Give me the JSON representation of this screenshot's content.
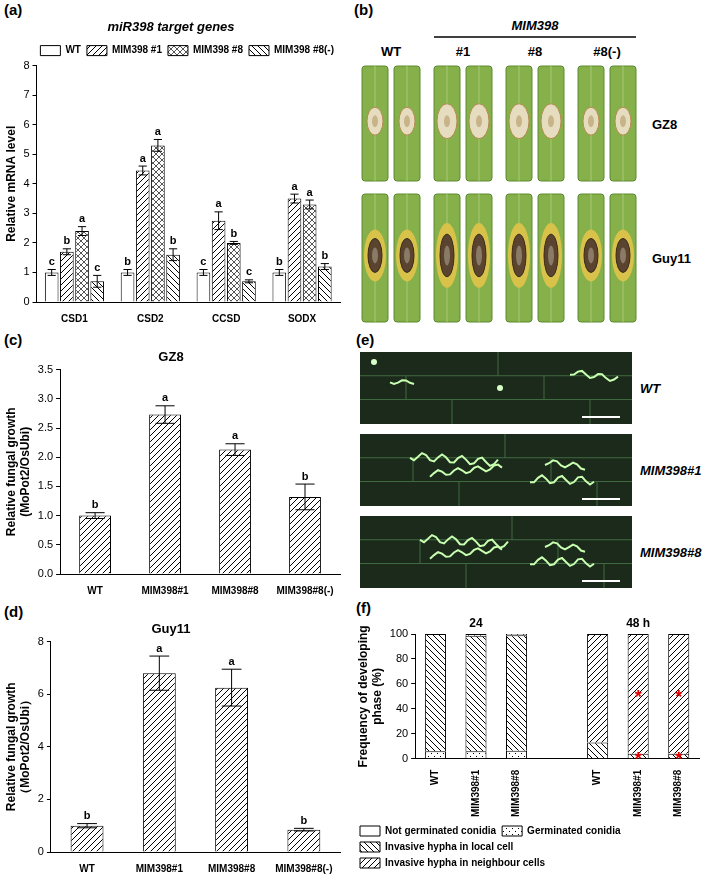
{
  "chart_data": [
    {
      "panel": "(a)",
      "type": "bar",
      "title": "miR398 target genes",
      "ylabel": "Relative mRNA level",
      "categories": [
        "CSD1",
        "CSD2",
        "CCSD",
        "SODX"
      ],
      "series": [
        {
          "name": "WT",
          "color": "#000000",
          "values": [
            1.0,
            1.0,
            1.0,
            1.0
          ],
          "errors": [
            0.1,
            0.1,
            0.1,
            0.1
          ],
          "letters": [
            "c",
            "b",
            "c",
            "b"
          ]
        },
        {
          "name": "MIM398 #1",
          "color": "#000000",
          "values": [
            1.7,
            4.45,
            2.75,
            3.5
          ],
          "errors": [
            0.1,
            0.15,
            0.3,
            0.15
          ],
          "letters": [
            "b",
            "a",
            "a",
            "a"
          ]
        },
        {
          "name": "MIM398 #8",
          "color": "#555555",
          "values": [
            2.4,
            5.3,
            2.0,
            3.3
          ],
          "errors": [
            0.15,
            0.2,
            0.05,
            0.15
          ],
          "letters": [
            "a",
            "a",
            "b",
            "a"
          ]
        },
        {
          "name": "MIM398 #8(-)",
          "color": "#000000",
          "values": [
            0.7,
            1.6,
            0.7,
            1.2
          ],
          "errors": [
            0.2,
            0.2,
            0.05,
            0.1
          ],
          "letters": [
            "c",
            "b",
            "c",
            "b"
          ]
        }
      ],
      "ylim": [
        0,
        8
      ],
      "yticks": [
        0,
        1,
        2,
        3,
        4,
        5,
        6,
        7,
        8
      ],
      "grid": false,
      "legend": "top"
    },
    {
      "panel": "(b)",
      "type": "image",
      "header": "MIM398",
      "columns": [
        "WT",
        "#1",
        "#8",
        "#8(-)"
      ],
      "rows": [
        "GZ8",
        "Guy11"
      ]
    },
    {
      "panel": "(c)",
      "type": "bar",
      "title": "GZ8",
      "ylabel": [
        "Relative fungal growth",
        "(MoPot2/OsUbi)"
      ],
      "categories": [
        "WT",
        "MIM398#1",
        "MIM398#8",
        "MIM398#8(-)"
      ],
      "values": [
        1.0,
        2.73,
        2.13,
        1.32
      ],
      "errors": [
        0.05,
        0.15,
        0.1,
        0.22
      ],
      "letters": [
        "b",
        "a",
        "a",
        "b"
      ],
      "color": "#000000",
      "ylim": [
        0,
        3.5
      ],
      "yticks": [
        {
          "value": 0,
          "label": "0.0"
        },
        0.5,
        {
          "value": 1,
          "label": "1.0"
        },
        1.5,
        {
          "value": 2,
          "label": "2.0"
        },
        2.5,
        {
          "value": 3,
          "label": "3.0"
        },
        3.5
      ],
      "grid": false
    },
    {
      "panel": "(d)",
      "type": "bar",
      "title": "Guy11",
      "ylabel": [
        "Relative fungal growth",
        "（MoPot2/OsUbi）"
      ],
      "categories": [
        "WT",
        "MIM398#1",
        "MIM398#8",
        "MIM398#8(-)"
      ],
      "values": [
        1.0,
        6.8,
        6.25,
        0.85
      ],
      "errors": [
        0.08,
        0.65,
        0.7,
        0.05
      ],
      "letters": [
        "b",
        "a",
        "a",
        "b"
      ],
      "color": "#000000",
      "ylim": [
        0,
        8
      ],
      "yticks": [
        0,
        2,
        4,
        6,
        8
      ],
      "grid": false
    },
    {
      "panel": "(e)",
      "type": "image",
      "rows": [
        "WT",
        "MIM398#1",
        "MIM398#8"
      ]
    },
    {
      "panel": "(f)",
      "type": "bar",
      "stacked": true,
      "ylabel": [
        "Frequency of developing",
        "phase (%)"
      ],
      "group_labels": [
        "24",
        "48 h"
      ],
      "categories": [
        "WT",
        "MIM398#1",
        "MIM398#8",
        null,
        "WT",
        "MIM398#1",
        "MIM398#8"
      ],
      "series": [
        {
          "name": "Not germinated conidia",
          "color": "#000000",
          "values": [
            0,
            0,
            0,
            null,
            0,
            0,
            0
          ]
        },
        {
          "name": "Germinated conidia",
          "color": "#000000",
          "values": [
            6,
            6,
            6.5,
            null,
            0,
            0,
            0
          ]
        },
        {
          "name": "Invasive hypha in local cell",
          "color": "#000000",
          "values": [
            94,
            92.5,
            92.5,
            null,
            13,
            4,
            4
          ],
          "significance": [
            null,
            null,
            null,
            null,
            null,
            "*",
            "*"
          ]
        },
        {
          "name": "Invasive hypha in neighbour cells",
          "color": "#000000",
          "values": [
            0,
            1.5,
            1,
            null,
            87,
            96,
            96
          ],
          "significance": [
            null,
            null,
            null,
            null,
            null,
            "*",
            "*"
          ]
        }
      ],
      "ylim": [
        0,
        100
      ],
      "yticks": [
        0,
        20,
        40,
        60,
        80,
        100
      ],
      "grid": false,
      "legend": "bottom"
    }
  ]
}
